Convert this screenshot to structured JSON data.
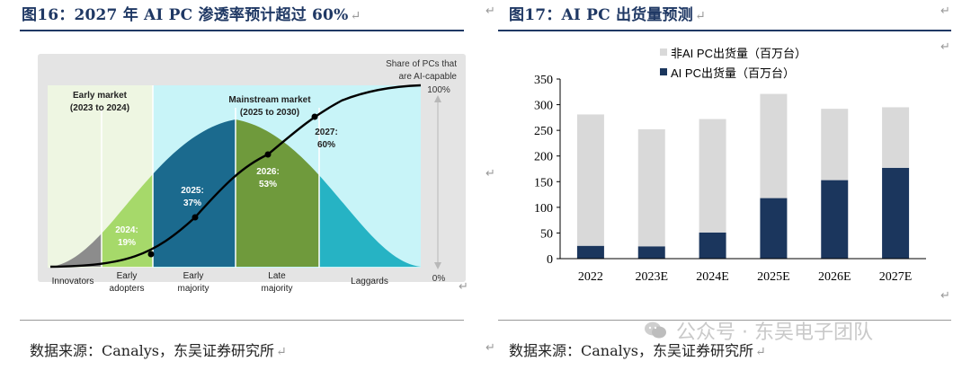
{
  "left": {
    "title": "图16：2027 年 AI PC 渗透率预计超过 60%",
    "source": "数据来源：Canalys，东吴证券研究所",
    "figure": {
      "share_label_1": "Share of PCs that",
      "share_label_2": "are AI-capable",
      "pct_top": "100%",
      "pct_bottom": "0%",
      "early_market_1": "Early market",
      "early_market_2": "(2023 to 2024)",
      "mainstream_1": "Mainstream market",
      "mainstream_2": "(2025 to 2030)",
      "point_2024_year": "2024:",
      "point_2024_val": "19%",
      "point_2025_year": "2025:",
      "point_2025_val": "37%",
      "point_2026_year": "2026:",
      "point_2026_val": "53%",
      "point_2027_year": "2027:",
      "point_2027_val": "60%",
      "seg_innovators": "Innovators",
      "seg_early_adopters_1": "Early",
      "seg_early_adopters_2": "adopters",
      "seg_early_majority_1": "Early",
      "seg_early_majority_2": "majority",
      "seg_late_majority_1": "Late",
      "seg_late_majority_2": "majority",
      "seg_laggards": "Laggards",
      "colors": {
        "innovators": "#8c8c8c",
        "early_adopters": "#a6d96a",
        "early_majority": "#1b6a8e",
        "late_majority": "#6f9a3c",
        "laggards": "#26b3c4",
        "early_bg": "#eef6e2",
        "main_bg": "#c8f4f8"
      }
    }
  },
  "right": {
    "title": "图17：AI PC 出货量预测",
    "source": "数据来源：Canalys，东吴证券研究所",
    "watermark": "公众号 · 东吴电子团队",
    "chart_data": {
      "type": "bar",
      "stacked": true,
      "categories": [
        "2022",
        "2023E",
        "2024E",
        "2025E",
        "2026E",
        "2027E"
      ],
      "series": [
        {
          "name": "AI PC出货量（百万台）",
          "color": "#1b365d",
          "values": [
            25,
            24,
            51,
            118,
            153,
            177
          ]
        },
        {
          "name": "非AI PC出货量（百万台）",
          "color": "#d9d9d9",
          "values": [
            256,
            228,
            221,
            203,
            139,
            118
          ]
        }
      ],
      "ylim": [
        0,
        350
      ],
      "yticks": [
        "0",
        "50",
        "100",
        "150",
        "200",
        "250",
        "300",
        "350"
      ],
      "legend": "top",
      "grid": false
    }
  }
}
